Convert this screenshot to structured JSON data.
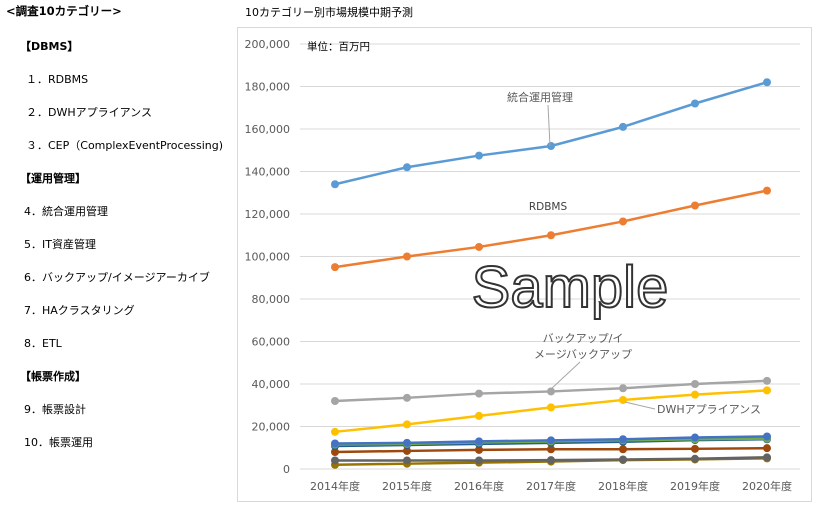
{
  "sidebar": {
    "title": "<調査10カテゴリー>",
    "items": [
      {
        "label": "【DBMS】",
        "header": true
      },
      {
        "label": "１．RDBMS"
      },
      {
        "label": "２．DWHアプライアンス"
      },
      {
        "label": "３．CEP（ComplexEventProcessing)"
      },
      {
        "label": "【運用管理】",
        "header": true
      },
      {
        "label": "4．統合運用管理"
      },
      {
        "label": "5．IT資産管理"
      },
      {
        "label": "6．バックアップ/イメージアーカイブ"
      },
      {
        "label": "7．HAクラスタリング"
      },
      {
        "label": "8．ETL"
      },
      {
        "label": "【帳票作成】",
        "header": true
      },
      {
        "label": "9．帳票設計"
      },
      {
        "label": "10．帳票運用"
      }
    ]
  },
  "chart_title": "10カテゴリー別市場規模中期予測",
  "watermark": "Sample",
  "chart_data": {
    "type": "line",
    "unit_label": "単位：百万円",
    "categories": [
      "2014年度",
      "2015年度",
      "2016年度",
      "2017年度",
      "2018年度",
      "2019年度",
      "2020年度"
    ],
    "ylim": [
      0,
      200000
    ],
    "yticks": [
      0,
      20000,
      40000,
      60000,
      80000,
      100000,
      120000,
      140000,
      160000,
      180000,
      200000
    ],
    "ytick_labels": [
      "0",
      "20,000",
      "40,000",
      "60,000",
      "80,000",
      "100,000",
      "120,000",
      "140,000",
      "160,000",
      "180,000",
      "200,000"
    ],
    "grid": true,
    "series": [
      {
        "name": "統合運用管理",
        "label": "統合運用管理",
        "color": "#5b9bd5",
        "values": [
          134000,
          142000,
          147500,
          152000,
          161000,
          172000,
          182000
        ]
      },
      {
        "name": "RDBMS",
        "label": "RDBMS",
        "color": "#ed7d31",
        "values": [
          95000,
          100000,
          104500,
          110000,
          116500,
          124000,
          131000
        ]
      },
      {
        "name": "バックアップ/イメージアーカイブ",
        "label": "バックアップ/イメージバックアップ",
        "color": "#a5a5a5",
        "values": [
          32000,
          33500,
          35500,
          36500,
          38000,
          40000,
          41500
        ]
      },
      {
        "name": "DWHアプライアンス",
        "label": "DWHアプライアンス",
        "color": "#ffc000",
        "values": [
          17500,
          21000,
          25000,
          29000,
          32500,
          35000,
          37000
        ]
      },
      {
        "name": "IT資産管理",
        "color": "#4472c4",
        "values": [
          12000,
          12300,
          13000,
          13500,
          14000,
          14800,
          15300
        ]
      },
      {
        "name": "HAクラスタリング",
        "color": "#70ad47",
        "values": [
          11500,
          11800,
          12500,
          13000,
          13500,
          14000,
          14300
        ]
      },
      {
        "name": "ETL",
        "color": "#255e91",
        "values": [
          10800,
          11300,
          11800,
          12300,
          12800,
          13600,
          14000
        ]
      },
      {
        "name": "帳票設計",
        "color": "#9e480e",
        "values": [
          8000,
          8500,
          9000,
          9300,
          9300,
          9500,
          9800
        ]
      },
      {
        "name": "帳票運用",
        "color": "#636363",
        "values": [
          4000,
          4000,
          4000,
          4200,
          4500,
          4800,
          5500
        ]
      },
      {
        "name": "CEP",
        "color": "#997300",
        "values": [
          2000,
          2500,
          3000,
          3500,
          4200,
          4500,
          5000
        ]
      }
    ]
  }
}
